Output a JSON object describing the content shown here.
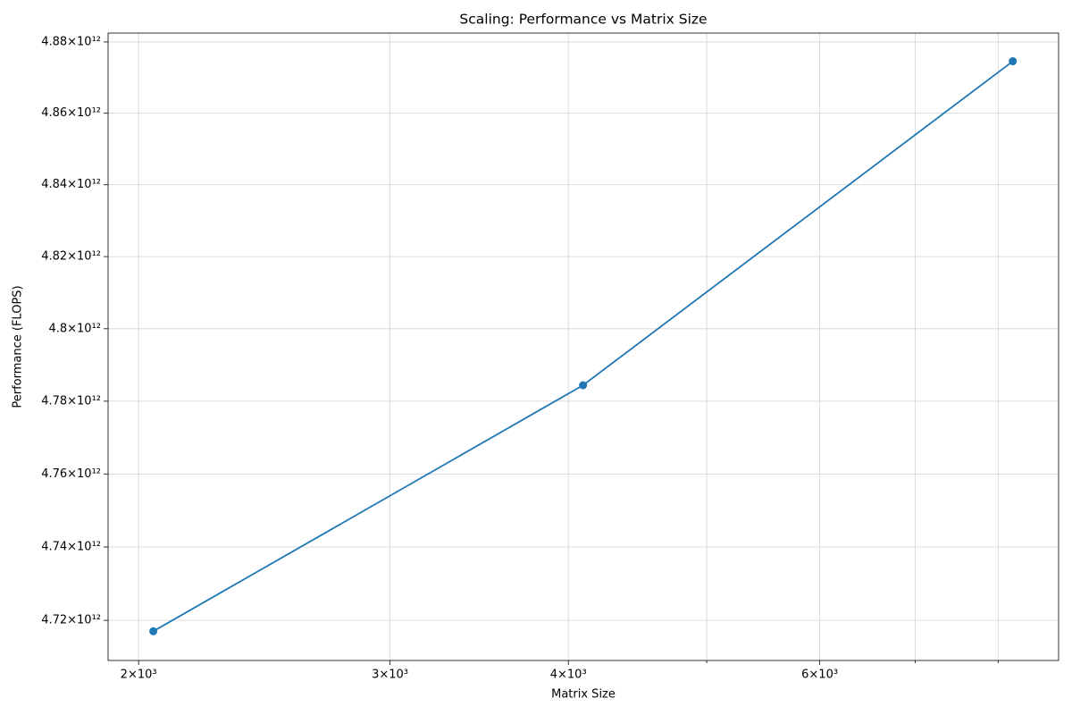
{
  "chart_data": {
    "type": "line",
    "title": "Scaling: Performance vs Matrix Size",
    "x_label": "Matrix Size",
    "y_label": "Performance (FLOPS)",
    "x": [
      2048,
      4096,
      8192
    ],
    "series": [
      {
        "name": "Performance",
        "color": "#1f77b4",
        "values": [
          4717040000000,
          4784400000000,
          4874570000000
        ]
      }
    ],
    "x_scale": "log",
    "y_scale": "log",
    "grid": true,
    "marker": "circle",
    "xlim": [
      1904,
      8820
    ],
    "ylim": [
      4709100000000,
      4882500000000
    ],
    "xticks": [
      {
        "value": 2000,
        "label": "2×10³"
      },
      {
        "value": 3000,
        "label": "3×10³"
      },
      {
        "value": 4000,
        "label": "4×10³"
      },
      {
        "value": 6000,
        "label": "6×10³"
      }
    ],
    "xminor_ticks": [
      5000,
      7000,
      8000
    ],
    "yticks": [
      {
        "value": 4720000000000,
        "label": "4.72×10¹²"
      },
      {
        "value": 4740000000000,
        "label": "4.74×10¹²"
      },
      {
        "value": 4760000000000,
        "label": "4.76×10¹²"
      },
      {
        "value": 4780000000000,
        "label": "4.78×10¹²"
      },
      {
        "value": 4800000000000,
        "label": "4.8×10¹²"
      },
      {
        "value": 4820000000000,
        "label": "4.82×10¹²"
      },
      {
        "value": 4840000000000,
        "label": "4.84×10¹²"
      },
      {
        "value": 4860000000000,
        "label": "4.86×10¹²"
      },
      {
        "value": 4880000000000,
        "label": "4.88×10¹²"
      }
    ]
  }
}
